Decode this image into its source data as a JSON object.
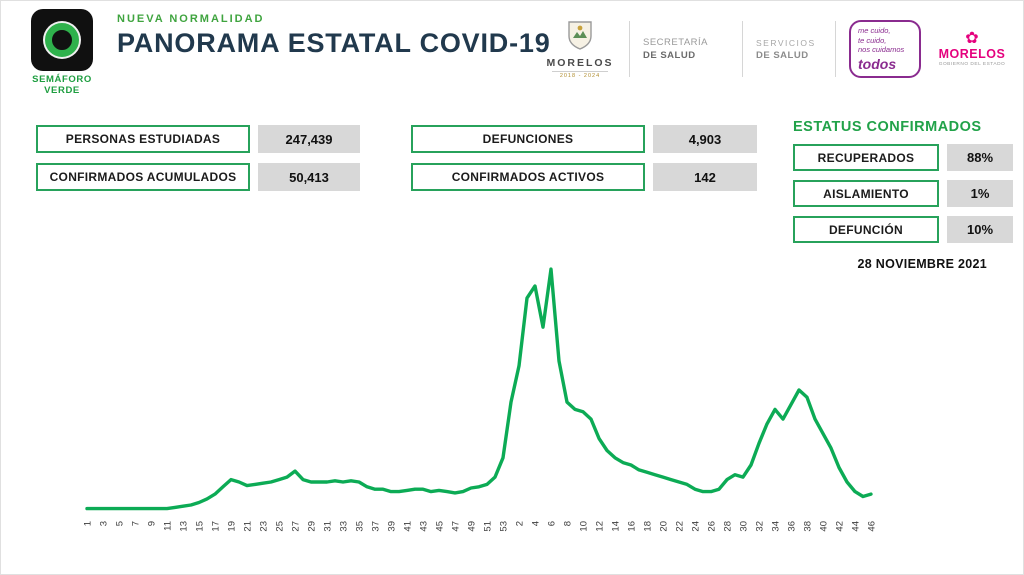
{
  "header": {
    "semaforo": {
      "line1": "SEMÁFORO",
      "line2": "VERDE"
    },
    "kicker": "NUEVA NORMALIDAD",
    "title": "PANORAMA ESTATAL COVID-19",
    "logos": {
      "crest": {
        "name": "MORELOS",
        "years": "2018 - 2024"
      },
      "secretaria": {
        "line1": "SECRETARÍA",
        "line2": "DE SALUD"
      },
      "servicios": {
        "line1": "SERVICIOS",
        "line2": "DE SALUD"
      },
      "mecuido": {
        "line1": "me cuido,",
        "line2": "te cuido,",
        "line3": "nos cuidamos",
        "line4": "todos"
      },
      "morelos_pink": {
        "flower": "✿",
        "name": "MORELOS",
        "tagline": "GOBIERNO DEL ESTADO"
      }
    }
  },
  "stats": {
    "left": [
      {
        "label": "PERSONAS ESTUDIADAS",
        "value": "247,439"
      },
      {
        "label": "CONFIRMADOS ACUMULADOS",
        "value": "50,413"
      }
    ],
    "middle": [
      {
        "label": "DEFUNCIONES",
        "value": "4,903"
      },
      {
        "label": "CONFIRMADOS ACTIVOS",
        "value": "142"
      }
    ],
    "status": {
      "title": "ESTATUS CONFIRMADOS",
      "rows": [
        {
          "label": "RECUPERADOS",
          "value": "88%"
        },
        {
          "label": "AISLAMIENTO",
          "value": "1%"
        },
        {
          "label": "DEFUNCIÓN",
          "value": "10%"
        }
      ]
    },
    "date": "28 NOVIEMBRE 2021"
  },
  "chart_data": {
    "type": "line",
    "line_color": "#0cab55",
    "grid": false,
    "legend": false,
    "ylim": [
      0,
      105
    ],
    "weeks": [
      1,
      2,
      3,
      4,
      5,
      6,
      7,
      8,
      9,
      10,
      11,
      12,
      13,
      14,
      15,
      16,
      17,
      18,
      19,
      20,
      21,
      22,
      23,
      24,
      25,
      26,
      27,
      28,
      29,
      30,
      31,
      32,
      33,
      34,
      35,
      36,
      37,
      38,
      39,
      40,
      41,
      42,
      43,
      44,
      45,
      46,
      47,
      48,
      49,
      50,
      51,
      52,
      53,
      1,
      2,
      3,
      4,
      5,
      6,
      7,
      8,
      9,
      10,
      11,
      12,
      13,
      14,
      15,
      16,
      17,
      18,
      19,
      20,
      21,
      22,
      23,
      24,
      25,
      26,
      27,
      28,
      29,
      30,
      31,
      32,
      33,
      34,
      35,
      36,
      37,
      38,
      39,
      40,
      41,
      42,
      43,
      44,
      45,
      46
    ],
    "values": [
      1,
      1,
      1,
      1,
      1,
      1,
      1,
      1,
      1,
      1,
      1,
      1.5,
      2,
      2.5,
      3.5,
      5,
      7,
      10,
      13,
      12,
      10.5,
      11,
      11.5,
      12,
      13,
      14,
      16.5,
      13,
      12,
      12,
      12,
      12.5,
      12,
      12.5,
      12,
      10,
      9,
      9,
      8,
      8,
      8.5,
      9,
      9,
      8,
      8.5,
      8,
      7.5,
      8,
      9.5,
      10,
      11,
      14,
      22,
      45,
      60,
      88,
      93,
      76,
      100,
      62,
      45,
      42,
      41,
      38,
      30,
      25,
      22,
      20,
      19,
      17,
      16,
      15,
      14,
      13,
      12,
      11,
      9,
      8,
      8,
      9,
      13,
      15,
      14,
      19,
      28,
      36,
      42,
      38,
      44,
      50,
      47,
      38,
      32,
      26,
      18,
      12,
      8,
      6,
      7
    ],
    "x_tick_indices": [
      0,
      2,
      4,
      6,
      8,
      10,
      12,
      14,
      16,
      18,
      20,
      22,
      24,
      26,
      28,
      30,
      32,
      34,
      36,
      38,
      40,
      42,
      44,
      46,
      48,
      50,
      52,
      54,
      56,
      58,
      60,
      62,
      64,
      66,
      68,
      70,
      72,
      74,
      76,
      78,
      80,
      82,
      84,
      86,
      88,
      90,
      92,
      94,
      96,
      98
    ],
    "x_tick_labels": [
      "1",
      "3",
      "5",
      "7",
      "9",
      "11",
      "13",
      "15",
      "17",
      "19",
      "21",
      "23",
      "25",
      "27",
      "29",
      "31",
      "33",
      "35",
      "37",
      "39",
      "41",
      "43",
      "45",
      "47",
      "49",
      "51",
      "53",
      "2",
      "4",
      "6",
      "8",
      "10",
      "12",
      "14",
      "16",
      "18",
      "20",
      "22",
      "24",
      "26",
      "28",
      "30",
      "32",
      "34",
      "36",
      "38",
      "40",
      "42",
      "44",
      "46"
    ]
  }
}
